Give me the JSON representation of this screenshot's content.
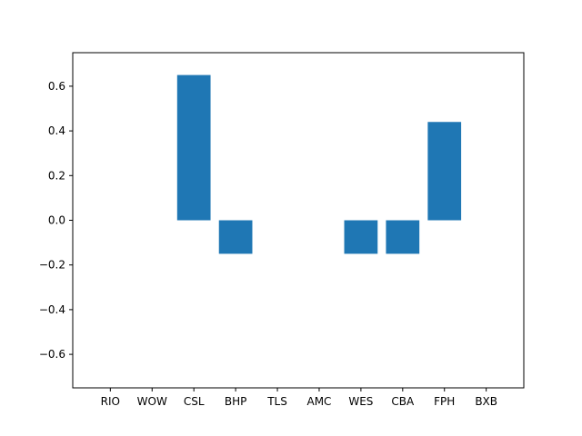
{
  "chart_data": {
    "type": "bar",
    "categories": [
      "RIO",
      "WOW",
      "CSL",
      "BHP",
      "TLS",
      "AMC",
      "WES",
      "CBA",
      "FPH",
      "BXB"
    ],
    "values": [
      0,
      0,
      0.65,
      -0.15,
      0,
      0,
      -0.15,
      -0.15,
      0.44,
      0
    ],
    "title": "",
    "xlabel": "",
    "ylabel": "",
    "ylim": [
      -0.75,
      0.75
    ],
    "yticks": [
      -0.6,
      -0.4,
      -0.2,
      0.0,
      0.2,
      0.4,
      0.6
    ],
    "ytick_labels": [
      "−0.6",
      "−0.4",
      "−0.2",
      "0.0",
      "0.2",
      "0.4",
      "0.6"
    ],
    "grid": false,
    "bar_color": "#1f77b4"
  }
}
